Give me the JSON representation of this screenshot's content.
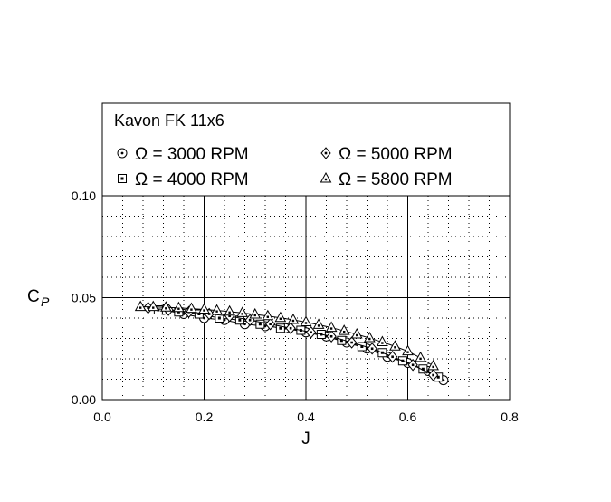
{
  "chart_data": {
    "type": "scatter",
    "title": "Kavon FK 11x6",
    "xlabel": "J",
    "ylabel": "C",
    "ylabel_sub": "P",
    "xlim": [
      0.0,
      0.8
    ],
    "ylim": [
      0.0,
      0.1
    ],
    "x_ticks": [
      "0.0",
      "0.2",
      "0.4",
      "0.6",
      "0.8"
    ],
    "y_ticks": [
      "0.00",
      "0.05",
      "0.10"
    ],
    "grid": true,
    "legend_position": "top",
    "series": [
      {
        "name": "Ω = 3000 RPM",
        "marker": "circle",
        "x": [
          0.12,
          0.16,
          0.2,
          0.24,
          0.28,
          0.32,
          0.36,
          0.4,
          0.44,
          0.48,
          0.52,
          0.56,
          0.6,
          0.64,
          0.67
        ],
        "y": [
          0.044,
          0.042,
          0.04,
          0.039,
          0.037,
          0.036,
          0.035,
          0.033,
          0.031,
          0.028,
          0.025,
          0.021,
          0.018,
          0.014,
          0.0095
        ]
      },
      {
        "name": "Ω = 4000 RPM",
        "marker": "square",
        "x": [
          0.11,
          0.15,
          0.19,
          0.23,
          0.27,
          0.31,
          0.35,
          0.39,
          0.43,
          0.47,
          0.51,
          0.55,
          0.59,
          0.63,
          0.66
        ],
        "y": [
          0.044,
          0.043,
          0.042,
          0.04,
          0.039,
          0.037,
          0.035,
          0.034,
          0.032,
          0.029,
          0.026,
          0.023,
          0.019,
          0.015,
          0.011
        ]
      },
      {
        "name": "Ω = 5000 RPM",
        "marker": "diamond",
        "x": [
          0.09,
          0.13,
          0.17,
          0.21,
          0.25,
          0.29,
          0.33,
          0.37,
          0.41,
          0.45,
          0.49,
          0.53,
          0.57,
          0.61,
          0.65
        ],
        "y": [
          0.045,
          0.044,
          0.043,
          0.042,
          0.041,
          0.039,
          0.037,
          0.035,
          0.033,
          0.031,
          0.028,
          0.025,
          0.021,
          0.017,
          0.012
        ]
      },
      {
        "name": "Ω = 5800 RPM",
        "marker": "triangle",
        "x": [
          0.075,
          0.1,
          0.125,
          0.15,
          0.175,
          0.2,
          0.225,
          0.25,
          0.275,
          0.3,
          0.325,
          0.35,
          0.375,
          0.4,
          0.425,
          0.45,
          0.475,
          0.5,
          0.525,
          0.55,
          0.575,
          0.6,
          0.625,
          0.65
        ],
        "y": [
          0.0455,
          0.0455,
          0.0452,
          0.045,
          0.0446,
          0.0442,
          0.0437,
          0.0432,
          0.0425,
          0.0418,
          0.041,
          0.0401,
          0.0391,
          0.038,
          0.0367,
          0.0353,
          0.0337,
          0.032,
          0.0302,
          0.0282,
          0.0261,
          0.0237,
          0.0205,
          0.0165
        ]
      }
    ]
  }
}
